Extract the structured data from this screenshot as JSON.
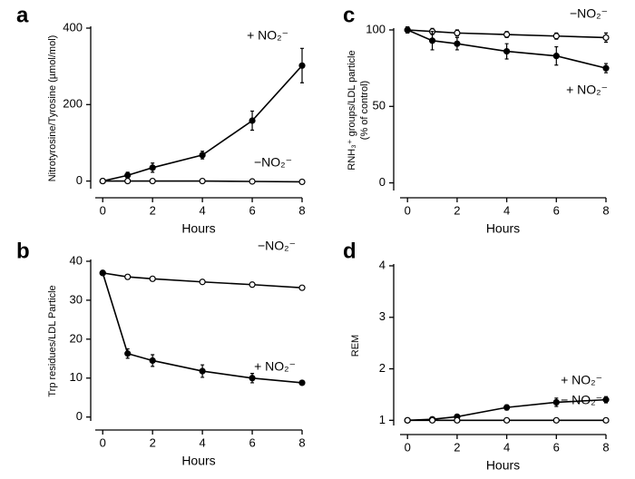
{
  "chart_data": [
    {
      "type": "line",
      "panel_label": "a",
      "ylabel": "Nitrotyrosine/Tyrosine (µmol/mol)",
      "xlabel": "Hours",
      "x": [
        0,
        1,
        2,
        4,
        6,
        8
      ],
      "xlim": [
        -0.3,
        8
      ],
      "xticks": [
        0,
        2,
        4,
        6,
        8
      ],
      "ylim": [
        -20,
        400
      ],
      "yticks": [
        0,
        200,
        400
      ],
      "series": [
        {
          "name": "+ NO₂⁻",
          "color": "#000",
          "marker_fill": "#000",
          "values": [
            0,
            15,
            35,
            68,
            158,
            302
          ],
          "errors": [
            3,
            8,
            12,
            10,
            25,
            45
          ]
        },
        {
          "name": "−NO₂⁻",
          "color": "#000",
          "marker_fill": "#fff",
          "values": [
            0,
            0,
            0,
            0,
            -1,
            -2
          ],
          "errors": [
            1,
            1,
            1,
            1,
            1,
            1
          ]
        }
      ]
    },
    {
      "type": "line",
      "panel_label": "b",
      "ylabel": "Trp residues/LDL Particle",
      "xlabel": "Hours",
      "x": [
        0,
        1,
        2,
        4,
        6,
        8
      ],
      "xlim": [
        -0.3,
        8
      ],
      "xticks": [
        0,
        2,
        4,
        6,
        8
      ],
      "ylim": [
        -1,
        40
      ],
      "yticks": [
        0,
        10,
        20,
        30,
        40
      ],
      "series": [
        {
          "name": "−NO₂⁻",
          "color": "#000",
          "marker_fill": "#fff",
          "values": [
            37,
            36,
            35.5,
            34.7,
            34,
            33.2
          ],
          "errors": [
            0.6,
            0.6,
            0.5,
            0.5,
            0.6,
            0.5
          ]
        },
        {
          "name": "+ NO₂⁻",
          "color": "#000",
          "marker_fill": "#000",
          "values": [
            37,
            16.3,
            14.5,
            11.8,
            10,
            8.8
          ],
          "errors": [
            0.6,
            1.2,
            1.5,
            1.6,
            1.2,
            0.5
          ]
        }
      ]
    },
    {
      "type": "line",
      "panel_label": "c",
      "ylabel": "RNH₃⁺ groups/LDL particle",
      "ylabel2": "(% of control)",
      "xlabel": "Hours",
      "x": [
        0,
        1,
        2,
        4,
        6,
        8
      ],
      "xlim": [
        -0.3,
        8
      ],
      "xticks": [
        0,
        2,
        4,
        6,
        8
      ],
      "ylim": [
        -5,
        100
      ],
      "yticks": [
        0,
        50,
        100
      ],
      "series": [
        {
          "name": "−NO₂⁻",
          "color": "#000",
          "marker_fill": "#fff",
          "values": [
            100,
            99,
            98,
            97,
            96,
            95
          ],
          "errors": [
            2,
            2,
            2,
            2,
            2,
            3
          ]
        },
        {
          "name": "+ NO₂⁻",
          "color": "#000",
          "marker_fill": "#000",
          "values": [
            100,
            93,
            91,
            86,
            83,
            75
          ],
          "errors": [
            2,
            6,
            4,
            5,
            6,
            3
          ]
        }
      ]
    },
    {
      "type": "line",
      "panel_label": "d",
      "ylabel": "REM",
      "xlabel": "Hours",
      "x": [
        0,
        1,
        2,
        4,
        6,
        8
      ],
      "xlim": [
        -0.3,
        8
      ],
      "xticks": [
        0,
        2,
        4,
        6,
        8
      ],
      "ylim": [
        0.9,
        4
      ],
      "yticks": [
        1,
        2,
        3,
        4
      ],
      "series": [
        {
          "name": "+ NO₂⁻",
          "color": "#000",
          "marker_fill": "#000",
          "values": [
            1,
            1.02,
            1.07,
            1.25,
            1.35,
            1.4
          ],
          "errors": [
            0.02,
            0.04,
            0.04,
            0.05,
            0.08,
            0.06
          ]
        },
        {
          "name": "− NO₂⁻",
          "color": "#000",
          "marker_fill": "#fff",
          "values": [
            1,
            1,
            1,
            1,
            1,
            1
          ],
          "errors": [
            0.01,
            0.01,
            0.01,
            0.01,
            0.01,
            0.01
          ]
        }
      ]
    }
  ]
}
